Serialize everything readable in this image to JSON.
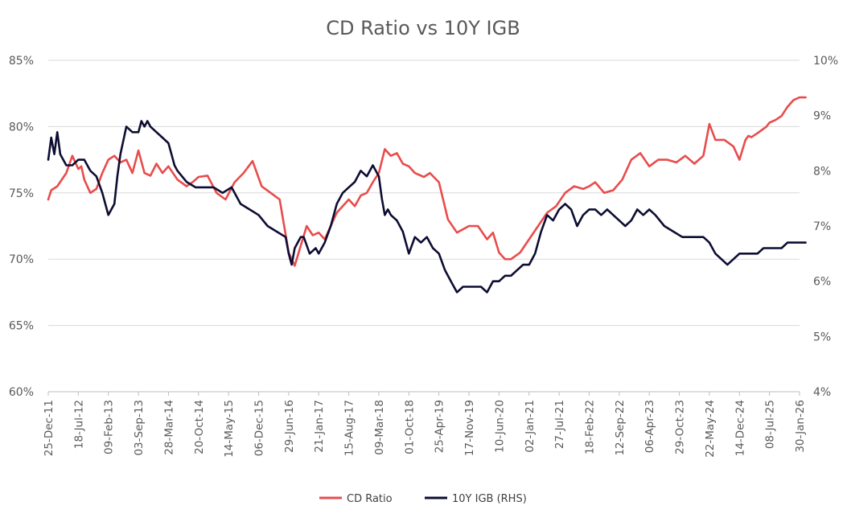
{
  "chart_data": {
    "type": "line",
    "title": "CD Ratio vs 10Y IGB",
    "xlabel": "",
    "ylabel": "",
    "ylabel_right": "",
    "ylim": [
      60,
      85
    ],
    "ylim_right": [
      4,
      10
    ],
    "yticks": [
      "60%",
      "65%",
      "70%",
      "75%",
      "80%",
      "85%"
    ],
    "yticks_right": [
      "4%",
      "5%",
      "6%",
      "7%",
      "8%",
      "9%",
      "10%"
    ],
    "x_tick_labels": [
      "25-Dec-11",
      "18-Jul-12",
      "09-Feb-13",
      "03-Sep-13",
      "28-Mar-14",
      "20-Oct-14",
      "14-May-15",
      "06-Dec-15",
      "29-Jun-16",
      "21-Jan-17",
      "15-Aug-17",
      "09-Mar-18",
      "01-Oct-18",
      "25-Apr-19",
      "17-Nov-19",
      "10-Jun-20",
      "02-Jan-21",
      "27-Jul-21",
      "18-Feb-22",
      "12-Sep-22",
      "06-Apr-23",
      "29-Oct-23",
      "22-May-24",
      "14-Dec-24",
      "08-Jul-25",
      "30-Jan-26"
    ],
    "grid": true,
    "legend_position": "bottom",
    "series": [
      {
        "name": "CD Ratio",
        "axis": "left",
        "color": "#e84c4c",
        "x": [
          0,
          0.1,
          0.3,
          0.6,
          0.8,
          1.0,
          1.1,
          1.2,
          1.4,
          1.6,
          1.8,
          2.0,
          2.2,
          2.4,
          2.6,
          2.8,
          3.0,
          3.2,
          3.4,
          3.6,
          3.8,
          4.0,
          4.3,
          4.6,
          4.8,
          5.0,
          5.3,
          5.6,
          5.9,
          6.2,
          6.5,
          6.8,
          7.1,
          7.4,
          7.7,
          8.0,
          8.2,
          8.4,
          8.6,
          8.8,
          9.0,
          9.2,
          9.4,
          9.6,
          9.8,
          10.0,
          10.2,
          10.4,
          10.6,
          10.8,
          11.0,
          11.2,
          11.4,
          11.6,
          11.8,
          12.0,
          12.2,
          12.5,
          12.7,
          13.0,
          13.3,
          13.6,
          14.0,
          14.3,
          14.6,
          14.8,
          15.0,
          15.2,
          15.4,
          15.7,
          16.0,
          16.3,
          16.6,
          16.9,
          17.2,
          17.5,
          17.8,
          18.0,
          18.2,
          18.5,
          18.8,
          19.1,
          19.4,
          19.7,
          20.0,
          20.3,
          20.6,
          20.9,
          21.2,
          21.5,
          21.8,
          22.0,
          22.2,
          22.5,
          22.8,
          23.0,
          23.2,
          23.3,
          23.4,
          23.6,
          23.9,
          24.0,
          24.2,
          24.4,
          24.6,
          24.8,
          25.0,
          25.2
        ],
        "values": [
          74.5,
          75.2,
          75.5,
          76.5,
          77.8,
          76.8,
          77.0,
          76.0,
          75.0,
          75.3,
          76.5,
          77.5,
          77.8,
          77.3,
          77.5,
          76.5,
          78.2,
          76.5,
          76.3,
          77.2,
          76.5,
          77.0,
          76.0,
          75.5,
          75.8,
          76.2,
          76.3,
          75.0,
          74.5,
          75.8,
          76.5,
          77.4,
          75.5,
          75.0,
          74.5,
          70.5,
          69.5,
          71.0,
          72.5,
          71.8,
          72.0,
          71.5,
          72.5,
          73.5,
          74.0,
          74.5,
          74.0,
          74.8,
          75.0,
          75.8,
          76.5,
          78.3,
          77.8,
          78.0,
          77.2,
          77.0,
          76.5,
          76.2,
          76.5,
          75.8,
          73.0,
          72.0,
          72.5,
          72.5,
          71.5,
          72.0,
          70.5,
          70.0,
          70.0,
          70.5,
          71.5,
          72.5,
          73.5,
          74.0,
          75.0,
          75.5,
          75.3,
          75.5,
          75.8,
          75.0,
          75.2,
          76.0,
          77.5,
          78.0,
          77.0,
          77.5,
          77.5,
          77.3,
          77.8,
          77.2,
          77.8,
          80.2,
          79.0,
          79.0,
          78.5,
          77.5,
          79.0,
          79.3,
          79.2,
          79.5,
          80.0,
          80.3,
          80.5,
          80.8,
          81.5,
          82.0,
          82.2,
          82.2
        ]
      },
      {
        "name": "10Y IGB (RHS)",
        "axis": "right",
        "color": "#0d0d33",
        "x": [
          0,
          0.1,
          0.2,
          0.3,
          0.4,
          0.6,
          0.8,
          1.0,
          1.2,
          1.4,
          1.6,
          1.8,
          2.0,
          2.2,
          2.3,
          2.4,
          2.6,
          2.8,
          3.0,
          3.1,
          3.2,
          3.3,
          3.4,
          3.6,
          3.8,
          4.0,
          4.1,
          4.2,
          4.3,
          4.6,
          4.9,
          5.2,
          5.5,
          5.8,
          6.1,
          6.4,
          6.7,
          7.0,
          7.3,
          7.6,
          7.9,
          8.0,
          8.1,
          8.2,
          8.3,
          8.4,
          8.5,
          8.7,
          8.9,
          9.0,
          9.2,
          9.4,
          9.6,
          9.8,
          10.0,
          10.2,
          10.4,
          10.6,
          10.8,
          11.0,
          11.1,
          11.2,
          11.3,
          11.4,
          11.6,
          11.8,
          12.0,
          12.2,
          12.4,
          12.6,
          12.8,
          13.0,
          13.2,
          13.4,
          13.6,
          13.8,
          14.0,
          14.2,
          14.4,
          14.6,
          14.8,
          15.0,
          15.2,
          15.4,
          15.6,
          15.8,
          16.0,
          16.2,
          16.4,
          16.6,
          16.8,
          17.0,
          17.2,
          17.4,
          17.6,
          17.8,
          18.0,
          18.2,
          18.4,
          18.6,
          18.8,
          19.0,
          19.2,
          19.4,
          19.6,
          19.8,
          20.0,
          20.2,
          20.5,
          20.8,
          21.1,
          21.4,
          21.6,
          21.8,
          22.0,
          22.2,
          22.4,
          22.6,
          22.8,
          23.0,
          23.2,
          23.4,
          23.6,
          23.8,
          24.0,
          24.2,
          24.4,
          24.6,
          24.8,
          25.0,
          25.2
        ],
        "values": [
          8.2,
          8.6,
          8.3,
          8.7,
          8.3,
          8.1,
          8.1,
          8.2,
          8.2,
          8.0,
          7.9,
          7.6,
          7.2,
          7.4,
          7.9,
          8.3,
          8.8,
          8.7,
          8.7,
          8.9,
          8.8,
          8.9,
          8.8,
          8.7,
          8.6,
          8.5,
          8.3,
          8.1,
          8.0,
          7.8,
          7.7,
          7.7,
          7.7,
          7.6,
          7.7,
          7.4,
          7.3,
          7.2,
          7.0,
          6.9,
          6.8,
          6.5,
          6.3,
          6.6,
          6.7,
          6.8,
          6.8,
          6.5,
          6.6,
          6.5,
          6.7,
          7.0,
          7.4,
          7.6,
          7.7,
          7.8,
          8.0,
          7.9,
          8.1,
          7.9,
          7.5,
          7.2,
          7.3,
          7.2,
          7.1,
          6.9,
          6.5,
          6.8,
          6.7,
          6.8,
          6.6,
          6.5,
          6.2,
          6.0,
          5.8,
          5.9,
          5.9,
          5.9,
          5.9,
          5.8,
          6.0,
          6.0,
          6.1,
          6.1,
          6.2,
          6.3,
          6.3,
          6.5,
          6.9,
          7.2,
          7.1,
          7.3,
          7.4,
          7.3,
          7.0,
          7.2,
          7.3,
          7.3,
          7.2,
          7.3,
          7.2,
          7.1,
          7.0,
          7.1,
          7.3,
          7.2,
          7.3,
          7.2,
          7.0,
          6.9,
          6.8,
          6.8,
          6.8,
          6.8,
          6.7,
          6.5,
          6.4,
          6.3,
          6.4,
          6.5,
          6.5,
          6.5,
          6.5,
          6.6,
          6.6,
          6.6,
          6.6,
          6.7,
          6.7,
          6.7,
          6.7
        ]
      }
    ]
  }
}
